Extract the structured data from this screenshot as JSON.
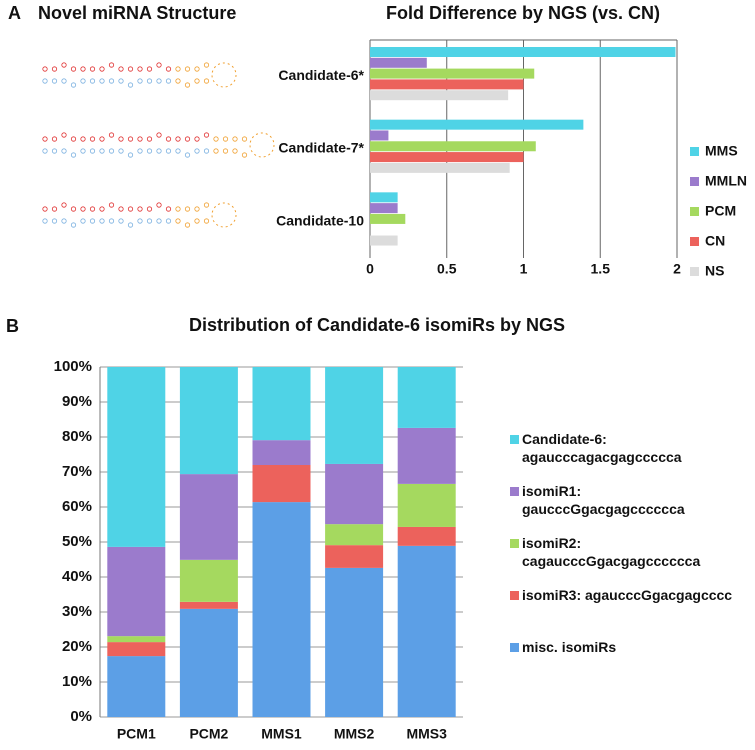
{
  "panels": {
    "a_label": "A",
    "a_title": "Novel miRNA Structure",
    "b_label": "B"
  },
  "chart_data": [
    {
      "type": "bar",
      "orientation": "horizontal",
      "title": "Fold Difference by NGS (vs. CN)",
      "categories": [
        "Candidate-6*",
        "Candidate-7*",
        "Candidate-10"
      ],
      "series": [
        {
          "name": "MMS",
          "color": "#4fd3e6",
          "values": [
            1.99,
            1.39,
            0.18
          ]
        },
        {
          "name": "MMLN",
          "color": "#9b7bcc",
          "values": [
            0.37,
            0.12,
            0.18
          ]
        },
        {
          "name": "PCM",
          "color": "#a5d95f",
          "values": [
            1.07,
            1.08,
            0.23
          ]
        },
        {
          "name": "CN",
          "color": "#ec625c",
          "values": [
            1.0,
            1.0,
            0
          ]
        },
        {
          "name": "NS",
          "color": "#dcdcdc",
          "values": [
            0.9,
            0.91,
            0.18
          ]
        }
      ],
      "xlim": [
        0,
        2
      ],
      "xticks": [
        0,
        0.5,
        1,
        1.5,
        2
      ],
      "grid": true,
      "legend": "right"
    },
    {
      "type": "bar",
      "stacked": true,
      "title": "Distribution of Candidate-6 isomiRs by NGS",
      "categories": [
        "PCM1",
        "PCM2",
        "MMS1",
        "MMS2",
        "MMS3"
      ],
      "series": [
        {
          "name": "misc. isomiRs",
          "color": "#5c9fe6",
          "values": [
            17.4,
            30.9,
            61.4,
            42.6,
            48.9
          ]
        },
        {
          "name": "isomiR3: agaucccGgacgagcccc",
          "color": "#ec625c",
          "values": [
            4,
            2,
            10.6,
            6.5,
            5.4
          ]
        },
        {
          "name": "isomiR2: cagaucccGgacgagcccccca",
          "color": "#a5d95f",
          "values": [
            1.7,
            12,
            0,
            6,
            12.3
          ]
        },
        {
          "name": "isomiR1: gaucccGgacgagcccccca",
          "color": "#9b7bcc",
          "values": [
            25.5,
            24.5,
            7.1,
            17.2,
            16
          ]
        },
        {
          "name": "Candidate-6: agaucccagacgagccccca",
          "color": "#4fd3e6",
          "values": [
            51.4,
            30.6,
            20.9,
            27.7,
            17.4
          ]
        }
      ],
      "ylim": [
        0,
        100
      ],
      "yticks": [
        {
          "value": 0,
          "label": "0%"
        },
        {
          "value": 10,
          "label": "10%"
        },
        {
          "value": 20,
          "label": "20%"
        },
        {
          "value": 30,
          "label": "30%"
        },
        {
          "value": 40,
          "label": "40%"
        },
        {
          "value": 50,
          "label": "50%"
        },
        {
          "value": 60,
          "label": "60%"
        },
        {
          "value": 70,
          "label": "70%"
        },
        {
          "value": 80,
          "label": "80%"
        },
        {
          "value": 90,
          "label": "90%"
        },
        {
          "value": 100,
          "label": "100%"
        }
      ],
      "grid": true,
      "legend": "right"
    }
  ]
}
